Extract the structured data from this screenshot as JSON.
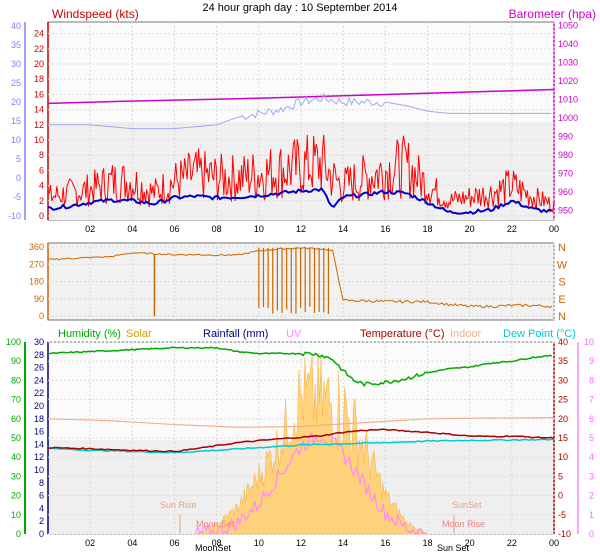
{
  "title": "24 hour graph day : 10 September 2014",
  "colors": {
    "wind_speed": "#ff0000",
    "wind_avg": "#0000cc",
    "wind_axis_label": "#cc0000",
    "left_axis_blue": "#8080ff",
    "barometer": "#cc00cc",
    "gust_ref": "#a0a8f0",
    "wind_dir": "#cc6600",
    "humidity": "#00aa00",
    "solar": "#ffcc66",
    "rainfall": "#000080",
    "uv": "#ff88ff",
    "temperature": "#aa0000",
    "indoor": "#f0b090",
    "dewpoint": "#00cccc",
    "moon": "#f08080",
    "sunrise": "#f0a070"
  },
  "x_ticks": [
    "02",
    "04",
    "06",
    "08",
    "10",
    "12",
    "14",
    "16",
    "18",
    "20",
    "22",
    "00"
  ],
  "chart_data": [
    {
      "type": "line",
      "title": "24 hour graph day : 10 September 2014",
      "left_label": "Windspeed (kts)",
      "right_label": "Barometer (hpa)",
      "left_ticks_red": [
        "24",
        "22",
        "20",
        "18",
        "16",
        "14",
        "12",
        "10",
        "8",
        "6",
        "4",
        "2",
        "0"
      ],
      "left_ticks_blue": [
        "40",
        "35",
        "30",
        "25",
        "20",
        "15",
        "10",
        "5",
        "0",
        "-5",
        "-10"
      ],
      "right_ticks": [
        "1050",
        "1040",
        "1030",
        "1020",
        "1010",
        "1000",
        "990",
        "980",
        "970",
        "960",
        "950"
      ],
      "ylim": [
        0,
        25
      ],
      "barometer_ylim": [
        945,
        1052
      ],
      "series": [
        {
          "key": "barometer",
          "x": [
            0,
            3,
            6,
            9,
            12,
            15,
            18,
            21,
            24
          ],
          "values": [
            1008,
            1009,
            1009.8,
            1010.5,
            1011.5,
            1012.5,
            1013.5,
            1014.5,
            1015.5
          ]
        },
        {
          "key": "gust_ref",
          "x": [
            0,
            2,
            4,
            6,
            8,
            9,
            10,
            11,
            12,
            13,
            14,
            15,
            16,
            17,
            18,
            19,
            20,
            21,
            22,
            23,
            24
          ],
          "values": [
            12,
            12,
            11.5,
            11.5,
            12,
            13,
            13.5,
            14,
            15,
            15.5,
            15,
            15,
            15,
            14.5,
            13.8,
            13.5,
            13.5,
            13.5,
            13.5,
            13.5,
            13.5
          ]
        },
        {
          "key": "wind_speed",
          "x": [
            0,
            1,
            2,
            3,
            4,
            5,
            6,
            7,
            8,
            9,
            10,
            11,
            12,
            13,
            13.5,
            14,
            15,
            16,
            17,
            18,
            19,
            20,
            21,
            22,
            23,
            24
          ],
          "values": [
            2.5,
            3,
            3.5,
            4.5,
            4.5,
            3,
            4.5,
            5.5,
            5,
            5,
            5.5,
            6,
            6.5,
            7,
            5,
            4,
            5,
            6,
            6.5,
            4,
            2,
            2.5,
            3,
            4,
            2.5,
            1.5
          ]
        },
        {
          "key": "wind_avg",
          "x": [
            0,
            1,
            2,
            3,
            4,
            5,
            6,
            7,
            8,
            9,
            10,
            11,
            12,
            13,
            13.5,
            14,
            15,
            16,
            17,
            18,
            19,
            20,
            21,
            22,
            23,
            24
          ],
          "values": [
            1,
            1.3,
            1.8,
            2.1,
            2,
            1.6,
            2.4,
            2.6,
            2.4,
            2.5,
            2.7,
            3,
            3.3,
            3.5,
            1,
            2.5,
            2.8,
            3.2,
            3,
            1.8,
            0.5,
            0.5,
            0.8,
            2,
            0.9,
            0.5
          ]
        }
      ]
    },
    {
      "type": "line",
      "right_label": "N W S E N",
      "right_letters": [
        "N",
        "W",
        "S",
        "E",
        "N"
      ],
      "left_ticks": [
        "360",
        "270",
        "180",
        "90",
        "0"
      ],
      "ylim": [
        0,
        360
      ],
      "series": [
        {
          "key": "wind_dir",
          "x": [
            0,
            2,
            3,
            4,
            5,
            6,
            7,
            8,
            9,
            10,
            11,
            12,
            13,
            13.5,
            14,
            15,
            16,
            17,
            18,
            19,
            20,
            21,
            22,
            23,
            24
          ],
          "values": [
            295,
            305,
            310,
            330,
            325,
            320,
            320,
            318,
            318,
            340,
            350,
            355,
            350,
            340,
            80,
            80,
            75,
            75,
            75,
            60,
            50,
            50,
            55,
            55,
            50
          ]
        }
      ]
    },
    {
      "type": "line",
      "labels": {
        "humidity": "Humidity (%)",
        "solar": "Solar",
        "rainfall": "Rainfall (mm)",
        "uv": "UV",
        "temperature": "Temperature (°C)",
        "indoor": "Indoor",
        "dewpoint": "Dew Point (°C)"
      },
      "humidity_ticks": [
        "100",
        "90",
        "80",
        "70",
        "60",
        "50",
        "40",
        "30",
        "20",
        "10",
        "0"
      ],
      "rain_ticks": [
        "30",
        "28",
        "26",
        "24",
        "22",
        "20",
        "18",
        "16",
        "14",
        "12",
        "10",
        "8",
        "6",
        "4",
        "2",
        "0"
      ],
      "temp_ticks": [
        "40",
        "35",
        "30",
        "25",
        "20",
        "15",
        "10",
        "5",
        "0",
        "-5",
        "-10"
      ],
      "uv_ticks": [
        "10",
        "9",
        "8",
        "7",
        "6",
        "5",
        "4",
        "3",
        "2",
        "1",
        "0"
      ],
      "annotations": {
        "sunrise": "Sun Rise",
        "sunset": "SunSet",
        "moonset": "Moon Set",
        "moonrise": "Moon Rise",
        "moonset_axis": "MoonSet",
        "sunset_axis": "Sun Set"
      },
      "series": [
        {
          "key": "humidity",
          "x": [
            0,
            2,
            4,
            6,
            7,
            8,
            9,
            10,
            11,
            12,
            12.5,
            13,
            13.5,
            14,
            14.5,
            15,
            16,
            17,
            18,
            19,
            20,
            21,
            22,
            23,
            24
          ],
          "values": [
            94,
            95,
            96,
            97,
            97,
            97,
            95,
            94,
            94,
            94,
            94,
            93,
            91,
            85,
            80,
            78,
            79,
            81,
            84,
            86,
            87,
            89,
            90,
            92,
            93
          ]
        },
        {
          "key": "indoor",
          "x": [
            0,
            3,
            6,
            9,
            12,
            15,
            18,
            21,
            24
          ],
          "values": [
            20,
            19.5,
            18.5,
            17.8,
            18,
            19,
            20,
            20.2,
            20.3
          ]
        },
        {
          "key": "temperature",
          "x": [
            0,
            2,
            4,
            6,
            7,
            8,
            9,
            10,
            11,
            12,
            13,
            14,
            15,
            16,
            17,
            18,
            19,
            20,
            21,
            22,
            23,
            24
          ],
          "values": [
            12.5,
            12.2,
            11.8,
            11.5,
            12.2,
            13,
            13.8,
            14.3,
            14.8,
            15.2,
            15.6,
            16.5,
            17,
            17.2,
            16.8,
            16.5,
            16,
            15.5,
            15.4,
            15.5,
            15.2,
            15
          ]
        },
        {
          "key": "dewpoint",
          "x": [
            0,
            2,
            4,
            6,
            8,
            10,
            12,
            14,
            16,
            18,
            20,
            22,
            24
          ],
          "values": [
            12.3,
            11.8,
            11.5,
            11.2,
            11.8,
            12.5,
            13.2,
            13.5,
            13.8,
            14.2,
            14.4,
            14.5,
            14.6
          ]
        },
        {
          "key": "uv",
          "x": [
            7,
            8,
            9,
            10,
            11,
            12,
            13,
            14,
            15,
            16,
            17,
            18
          ],
          "values": [
            0,
            0.1,
            0.6,
            1.6,
            3.1,
            4.6,
            5.2,
            4.2,
            2.6,
            1.1,
            0.3,
            0
          ]
        },
        {
          "key": "solar_hi",
          "x": [
            7,
            8,
            9,
            10,
            11,
            12,
            13,
            14,
            15,
            16,
            17,
            18
          ],
          "values": [
            0,
            0.6,
            1.8,
            3.8,
            6.2,
            9.5,
            9.5,
            9.0,
            6.0,
            2.6,
            0.8,
            0
          ]
        },
        {
          "key": "solar_lo",
          "x": [
            7,
            8,
            9,
            10,
            11,
            12,
            13,
            14,
            15,
            16,
            17,
            18
          ],
          "values": [
            0,
            0.3,
            1.0,
            2.2,
            3.5,
            5.0,
            4.5,
            4.0,
            3.0,
            1.5,
            0.4,
            0
          ]
        }
      ]
    }
  ]
}
